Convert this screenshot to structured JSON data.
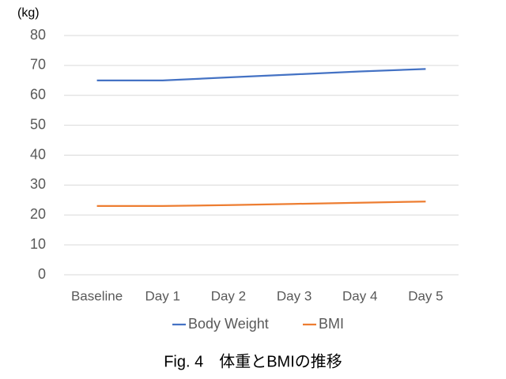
{
  "chart_data": {
    "type": "line",
    "title": "Fig. 4　体重とBMIの推移",
    "y_label": "(kg)",
    "categories": [
      "Baseline",
      "Day 1",
      "Day 2",
      "Day 3",
      "Day 4",
      "Day 5"
    ],
    "series": [
      {
        "name": "Body Weight",
        "color": "#4472c4",
        "values": [
          65,
          65,
          66,
          67,
          68,
          68.8
        ]
      },
      {
        "name": "BMI",
        "color": "#ed7d31",
        "values": [
          23,
          23,
          23.3,
          23.7,
          24.1,
          24.5
        ]
      }
    ],
    "ylim": [
      0,
      80
    ],
    "yticks": [
      0,
      10,
      20,
      30,
      40,
      50,
      60,
      70,
      80
    ],
    "grid": true,
    "legend": "bottom"
  }
}
